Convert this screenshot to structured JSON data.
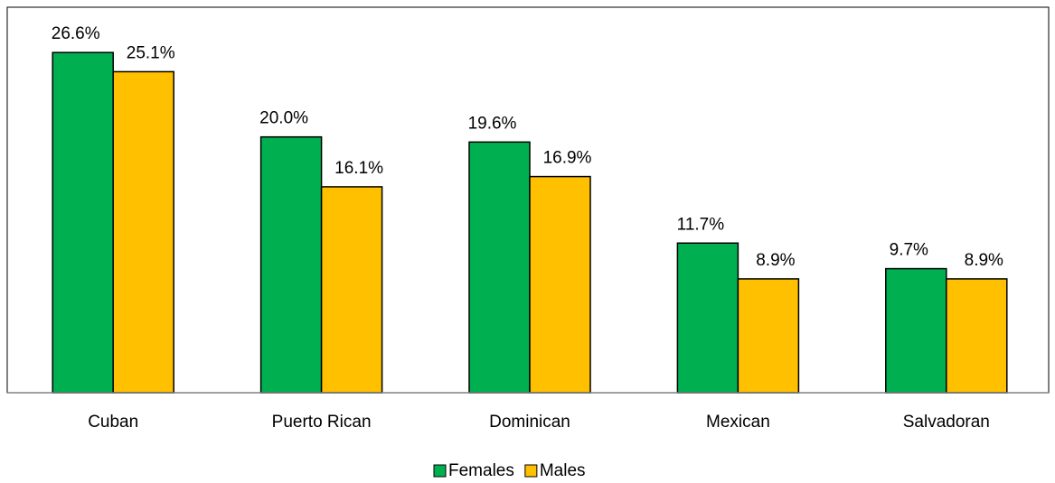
{
  "chart_data": {
    "type": "bar",
    "categories": [
      "Cuban",
      "Puerto Rican",
      "Dominican",
      "Mexican",
      "Salvadoran"
    ],
    "series": [
      {
        "name": "Females",
        "color": "#00b050",
        "values": [
          26.6,
          20.0,
          19.6,
          11.7,
          9.7
        ],
        "value_labels": [
          "26.6%",
          "20.0%",
          "19.6%",
          "11.7%",
          "9.7%"
        ]
      },
      {
        "name": "Males",
        "color": "#ffc000",
        "values": [
          25.1,
          16.1,
          16.9,
          8.9,
          8.9
        ],
        "value_labels": [
          "25.1%",
          "16.1%",
          "16.9%",
          "8.9%",
          "8.9%"
        ]
      }
    ],
    "ylim": [
      0,
      30
    ],
    "legend": "bottom"
  }
}
